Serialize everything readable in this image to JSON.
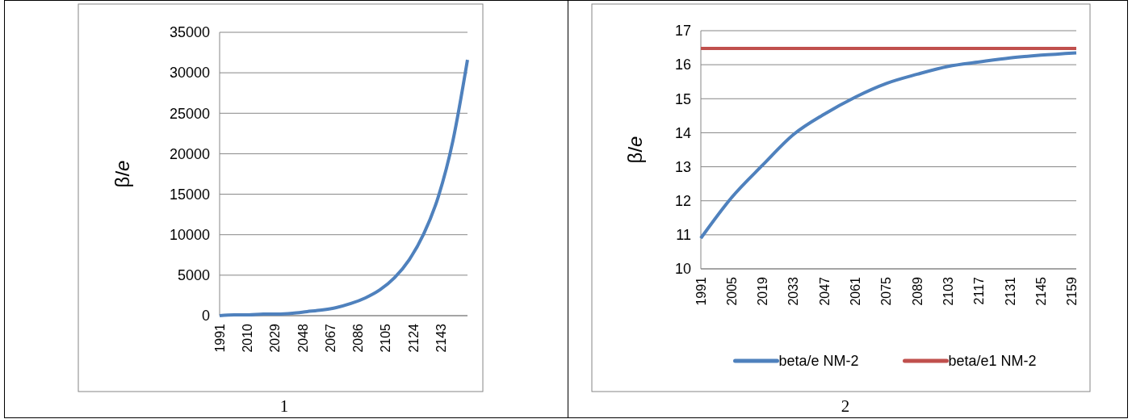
{
  "chart_data": [
    {
      "type": "line",
      "ylabel": "β/e",
      "x": [
        1991,
        2001,
        2011,
        2021,
        2031,
        2041,
        2051,
        2061,
        2071,
        2081,
        2091,
        2101,
        2111,
        2121,
        2131,
        2141,
        2151,
        2161
      ],
      "series": [
        {
          "color": "#4f81bd",
          "values": [
            0,
            100,
            100,
            200,
            200,
            300,
            500,
            700,
            1000,
            1500,
            2200,
            3200,
            4700,
            6900,
            10100,
            14700,
            21600,
            31600
          ]
        }
      ],
      "xlim": [
        1991,
        2161
      ],
      "xticks": [
        1991,
        2010,
        2029,
        2048,
        2067,
        2086,
        2105,
        2124,
        2143
      ],
      "ylim": [
        0,
        35000
      ],
      "yticks": [
        0,
        5000,
        10000,
        15000,
        20000,
        25000,
        30000,
        35000
      ],
      "grid": "y",
      "legend": false,
      "annotations": [
        "1"
      ]
    },
    {
      "type": "line",
      "ylabel": "β/e",
      "xlim": [
        1991,
        2161
      ],
      "xticks": [
        1991,
        2005,
        2019,
        2033,
        2047,
        2061,
        2075,
        2089,
        2103,
        2117,
        2131,
        2145,
        2159
      ],
      "ylim": [
        10,
        17
      ],
      "yticks": [
        10,
        11,
        12,
        13,
        14,
        15,
        16,
        17
      ],
      "grid": "y",
      "legend": "bottom",
      "annotations": [
        "2"
      ],
      "series": [
        {
          "name": "beta/e NM-2",
          "color": "#4f81bd",
          "x": [
            1991,
            2005,
            2019,
            2033,
            2047,
            2061,
            2075,
            2089,
            2103,
            2117,
            2131,
            2145,
            2161
          ],
          "values": [
            10.9,
            12.1,
            13.05,
            13.95,
            14.55,
            15.05,
            15.45,
            15.72,
            15.95,
            16.08,
            16.2,
            16.28,
            16.35
          ]
        },
        {
          "name": "beta/e1 NM-2",
          "color": "#c0504d",
          "x": [
            1991,
            2161
          ],
          "values": [
            16.48,
            16.48
          ]
        }
      ]
    }
  ]
}
